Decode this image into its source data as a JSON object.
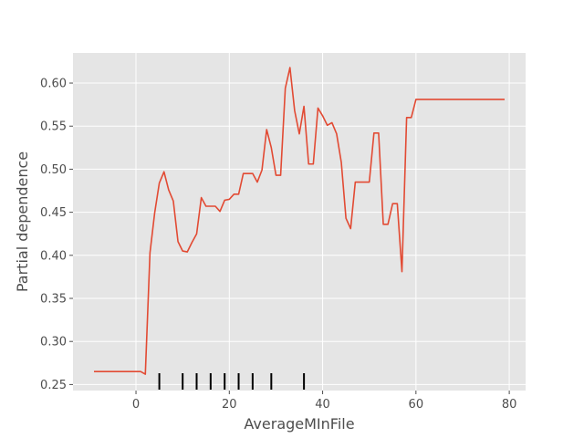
{
  "chart_data": {
    "type": "line",
    "title": "",
    "xlabel": "AverageMInFile",
    "ylabel": "Partial dependence",
    "xlim": [
      -13.5,
      83.5
    ],
    "ylim": [
      0.243,
      0.635
    ],
    "x_ticks": [
      0,
      20,
      40,
      60,
      80
    ],
    "y_ticks": [
      0.25,
      0.3,
      0.35,
      0.4,
      0.45,
      0.5,
      0.55,
      0.6
    ],
    "x_tick_labels": [
      "0",
      "20",
      "40",
      "60",
      "80"
    ],
    "y_tick_labels": [
      "0.25",
      "0.30",
      "0.35",
      "0.40",
      "0.45",
      "0.50",
      "0.55",
      "0.60"
    ],
    "grid": true,
    "colors": {
      "background": "#e5e5e5",
      "grid": "#ffffff",
      "line": "#e24a33",
      "rug": "#000000",
      "text": "#4d4d4d"
    },
    "series": [
      {
        "x": [
          -9,
          1,
          2,
          3,
          4,
          5,
          6,
          7,
          8,
          9,
          10,
          11,
          12,
          13,
          14,
          15,
          16,
          17,
          18,
          19,
          20,
          21,
          22,
          23,
          24,
          25,
          26,
          27,
          28,
          29,
          30,
          31,
          32,
          33,
          34,
          35,
          36,
          37,
          38,
          39,
          40,
          41,
          42,
          43,
          44,
          45,
          46,
          47,
          48,
          49,
          50,
          51,
          52,
          53,
          54,
          55,
          56,
          57,
          58,
          59,
          60,
          79
        ],
        "y": [
          0.265,
          0.265,
          0.262,
          0.403,
          0.449,
          0.484,
          0.497,
          0.476,
          0.463,
          0.416,
          0.405,
          0.404,
          0.415,
          0.425,
          0.467,
          0.457,
          0.457,
          0.457,
          0.451,
          0.464,
          0.465,
          0.471,
          0.471,
          0.495,
          0.495,
          0.495,
          0.485,
          0.499,
          0.546,
          0.525,
          0.493,
          0.493,
          0.594,
          0.618,
          0.568,
          0.541,
          0.573,
          0.506,
          0.506,
          0.571,
          0.562,
          0.551,
          0.554,
          0.541,
          0.508,
          0.443,
          0.431,
          0.485,
          0.485,
          0.485,
          0.485,
          0.542,
          0.542,
          0.436,
          0.436,
          0.46,
          0.46,
          0.381,
          0.56,
          0.56,
          0.581,
          0.581
        ]
      }
    ],
    "rug_x": [
      5,
      10,
      13,
      16,
      19,
      22,
      25,
      29,
      36
    ]
  }
}
